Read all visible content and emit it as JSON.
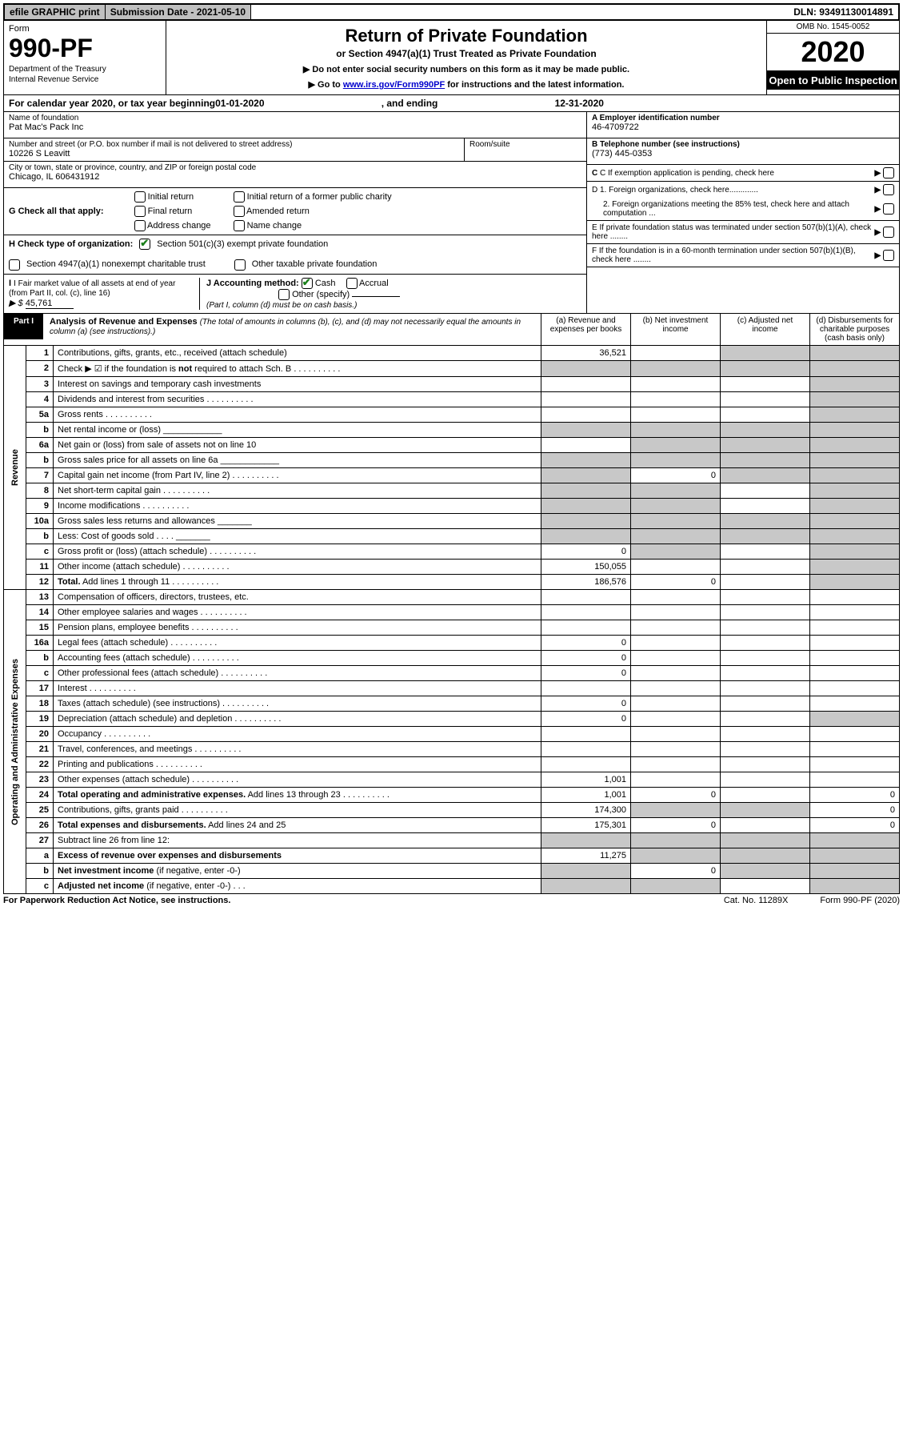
{
  "top": {
    "efile": "efile GRAPHIC print",
    "submission": "Submission Date - 2021-05-10",
    "dln": "DLN: 93491130014891"
  },
  "header": {
    "form_word": "Form",
    "form_number": "990-PF",
    "dept1": "Department of the Treasury",
    "dept2": "Internal Revenue Service",
    "title": "Return of Private Foundation",
    "subtitle": "or Section 4947(a)(1) Trust Treated as Private Foundation",
    "note1": "▶ Do not enter social security numbers on this form as it may be made public.",
    "note2_pre": "▶ Go to ",
    "note2_link": "www.irs.gov/Form990PF",
    "note2_post": " for instructions and the latest information.",
    "omb": "OMB No. 1545-0052",
    "year": "2020",
    "open": "Open to Public Inspection"
  },
  "calendar": {
    "prefix": "For calendar year 2020, or tax year beginning ",
    "begin": "01-01-2020",
    "mid": ", and ending ",
    "end": "12-31-2020"
  },
  "entity": {
    "name_label": "Name of foundation",
    "name": "Pat Mac's Pack Inc",
    "addr_label": "Number and street (or P.O. box number if mail is not delivered to street address)",
    "addr": "10226 S Leavitt",
    "room_label": "Room/suite",
    "city_label": "City or town, state or province, country, and ZIP or foreign postal code",
    "city": "Chicago, IL  606431912",
    "ein_label": "A Employer identification number",
    "ein": "46-4709722",
    "phone_label": "B Telephone number (see instructions)",
    "phone": "(773) 445-0353"
  },
  "checks": {
    "G": "G Check all that apply:",
    "initial": "Initial return",
    "final": "Final return",
    "address": "Address change",
    "initial_former": "Initial return of a former public charity",
    "amended": "Amended return",
    "name_change": "Name change",
    "H": "H Check type of organization:",
    "H1": "Section 501(c)(3) exempt private foundation",
    "H2": "Section 4947(a)(1) nonexempt charitable trust",
    "H3": "Other taxable private foundation",
    "I_label": "I Fair market value of all assets at end of year (from Part II, col. (c), line 16)",
    "I_value": "45,761",
    "J": "J Accounting method:",
    "J_cash": "Cash",
    "J_accrual": "Accrual",
    "J_other": "Other (specify)",
    "J_note": "(Part I, column (d) must be on cash basis.)",
    "C": "C If exemption application is pending, check here",
    "D1": "D 1. Foreign organizations, check here.............",
    "D2": "2. Foreign organizations meeting the 85% test, check here and attach computation ...",
    "E": "E  If private foundation status was terminated under section 507(b)(1)(A), check here ........",
    "F": "F  If the foundation is in a 60-month termination under section 507(b)(1)(B), check here ........"
  },
  "part1": {
    "label": "Part I",
    "title": "Analysis of Revenue and Expenses",
    "title_note": "(The total of amounts in columns (b), (c), and (d) may not necessarily equal the amounts in column (a) (see instructions).)",
    "col_a": "(a)   Revenue and expenses per books",
    "col_b": "(b)   Net investment income",
    "col_c": "(c)   Adjusted net income",
    "col_d": "(d)   Disbursements for charitable purposes (cash basis only)",
    "side_rev": "Revenue",
    "side_exp": "Operating and Administrative Expenses"
  },
  "rows_rev": [
    {
      "n": "1",
      "desc": "Contributions, gifts, grants, etc., received (attach schedule)",
      "a": "36,521",
      "b": "",
      "c": "shaded",
      "d": "shaded"
    },
    {
      "n": "2",
      "desc": "Check ▶ ☑ if the foundation is <b>not</b> required to attach Sch. B",
      "a": "shaded",
      "b": "shaded",
      "c": "shaded",
      "d": "shaded",
      "dots": true
    },
    {
      "n": "3",
      "desc": "Interest on savings and temporary cash investments",
      "a": "",
      "b": "",
      "c": "",
      "d": "shaded"
    },
    {
      "n": "4",
      "desc": "Dividends and interest from securities",
      "a": "",
      "b": "",
      "c": "",
      "d": "shaded",
      "dots": true
    },
    {
      "n": "5a",
      "desc": "Gross rents",
      "a": "",
      "b": "",
      "c": "",
      "d": "shaded",
      "dots": true
    },
    {
      "n": "b",
      "desc": "Net rental income or (loss) ____________",
      "a": "shaded",
      "b": "shaded",
      "c": "shaded",
      "d": "shaded"
    },
    {
      "n": "6a",
      "desc": "Net gain or (loss) from sale of assets not on line 10",
      "a": "",
      "b": "shaded",
      "c": "shaded",
      "d": "shaded"
    },
    {
      "n": "b",
      "desc": "Gross sales price for all assets on line 6a ____________",
      "a": "shaded",
      "b": "shaded",
      "c": "shaded",
      "d": "shaded"
    },
    {
      "n": "7",
      "desc": "Capital gain net income (from Part IV, line 2)",
      "a": "shaded",
      "b": "0",
      "c": "shaded",
      "d": "shaded",
      "dots": true
    },
    {
      "n": "8",
      "desc": "Net short-term capital gain",
      "a": "shaded",
      "b": "shaded",
      "c": "",
      "d": "shaded",
      "dots": true
    },
    {
      "n": "9",
      "desc": "Income modifications",
      "a": "shaded",
      "b": "shaded",
      "c": "",
      "d": "shaded",
      "dots": true
    },
    {
      "n": "10a",
      "desc": "Gross sales less returns and allowances _______",
      "a": "shaded",
      "b": "shaded",
      "c": "shaded",
      "d": "shaded"
    },
    {
      "n": "b",
      "desc": "Less: Cost of goods sold   .  .  .  .   _______",
      "a": "shaded",
      "b": "shaded",
      "c": "shaded",
      "d": "shaded"
    },
    {
      "n": "c",
      "desc": "Gross profit or (loss) (attach schedule)",
      "a": "0",
      "b": "shaded",
      "c": "",
      "d": "shaded",
      "dots": true
    },
    {
      "n": "11",
      "desc": "Other income (attach schedule)",
      "a": "150,055",
      "b": "",
      "c": "",
      "d": "shaded",
      "dots": true
    },
    {
      "n": "12",
      "desc": "<b>Total.</b> Add lines 1 through 11",
      "a": "186,576",
      "b": "0",
      "c": "",
      "d": "shaded",
      "dots": true
    }
  ],
  "rows_exp": [
    {
      "n": "13",
      "desc": "Compensation of officers, directors, trustees, etc.",
      "a": "",
      "b": "",
      "c": "",
      "d": ""
    },
    {
      "n": "14",
      "desc": "Other employee salaries and wages",
      "a": "",
      "b": "",
      "c": "",
      "d": "",
      "dots": true
    },
    {
      "n": "15",
      "desc": "Pension plans, employee benefits",
      "a": "",
      "b": "",
      "c": "",
      "d": "",
      "dots": true
    },
    {
      "n": "16a",
      "desc": "Legal fees (attach schedule)",
      "a": "0",
      "b": "",
      "c": "",
      "d": "",
      "dots": true
    },
    {
      "n": "b",
      "desc": "Accounting fees (attach schedule)",
      "a": "0",
      "b": "",
      "c": "",
      "d": "",
      "dots": true
    },
    {
      "n": "c",
      "desc": "Other professional fees (attach schedule)",
      "a": "0",
      "b": "",
      "c": "",
      "d": "",
      "dots": true
    },
    {
      "n": "17",
      "desc": "Interest",
      "a": "",
      "b": "",
      "c": "",
      "d": "",
      "dots": true
    },
    {
      "n": "18",
      "desc": "Taxes (attach schedule) (see instructions)",
      "a": "0",
      "b": "",
      "c": "",
      "d": "",
      "dots": true
    },
    {
      "n": "19",
      "desc": "Depreciation (attach schedule) and depletion",
      "a": "0",
      "b": "",
      "c": "",
      "d": "shaded",
      "dots": true
    },
    {
      "n": "20",
      "desc": "Occupancy",
      "a": "",
      "b": "",
      "c": "",
      "d": "",
      "dots": true
    },
    {
      "n": "21",
      "desc": "Travel, conferences, and meetings",
      "a": "",
      "b": "",
      "c": "",
      "d": "",
      "dots": true
    },
    {
      "n": "22",
      "desc": "Printing and publications",
      "a": "",
      "b": "",
      "c": "",
      "d": "",
      "dots": true
    },
    {
      "n": "23",
      "desc": "Other expenses (attach schedule)",
      "a": "1,001",
      "b": "",
      "c": "",
      "d": "",
      "dots": true
    },
    {
      "n": "24",
      "desc": "<b>Total operating and administrative expenses.</b> Add lines 13 through 23",
      "a": "1,001",
      "b": "0",
      "c": "",
      "d": "0",
      "dots": true
    },
    {
      "n": "25",
      "desc": "Contributions, gifts, grants paid",
      "a": "174,300",
      "b": "shaded",
      "c": "shaded",
      "d": "0",
      "dots": true
    },
    {
      "n": "26",
      "desc": "<b>Total expenses and disbursements.</b> Add lines 24 and 25",
      "a": "175,301",
      "b": "0",
      "c": "",
      "d": "0"
    },
    {
      "n": "27",
      "desc": "Subtract line 26 from line 12:",
      "a": "shaded",
      "b": "shaded",
      "c": "shaded",
      "d": "shaded"
    },
    {
      "n": "a",
      "desc": "<b>Excess of revenue over expenses and disbursements</b>",
      "a": "11,275",
      "b": "shaded",
      "c": "shaded",
      "d": "shaded"
    },
    {
      "n": "b",
      "desc": "<b>Net investment income</b> (if negative, enter -0-)",
      "a": "shaded",
      "b": "0",
      "c": "shaded",
      "d": "shaded"
    },
    {
      "n": "c",
      "desc": "<b>Adjusted net income</b> (if negative, enter -0-)   .  .  .",
      "a": "shaded",
      "b": "shaded",
      "c": "",
      "d": "shaded"
    }
  ],
  "footer": {
    "left": "For Paperwork Reduction Act Notice, see instructions.",
    "cat": "Cat. No. 11289X",
    "right": "Form 990-PF (2020)"
  }
}
